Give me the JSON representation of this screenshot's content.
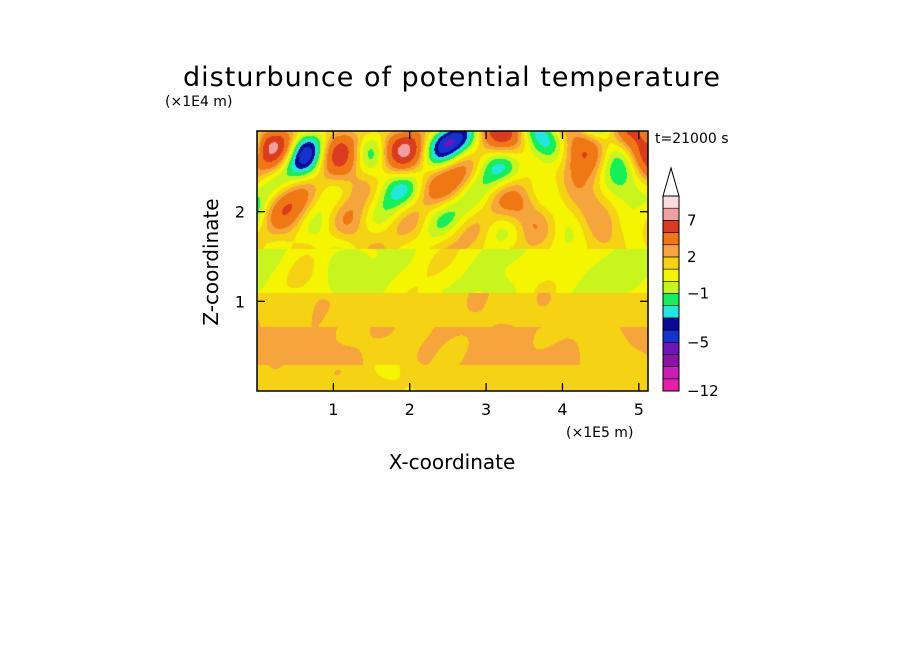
{
  "chart_data": {
    "type": "heatmap",
    "title": "disturbunce of potential temperature",
    "time_label": "t=21000 s",
    "xlabel": "X-coordinate",
    "ylabel": "Z-coordinate",
    "x_scale_label": "(×1E5 m)",
    "y_scale_label": "(×1E4 m)",
    "xlim": [
      0,
      5.12
    ],
    "ylim": [
      0,
      2.9
    ],
    "x_ticks": [
      1,
      2,
      3,
      4,
      5
    ],
    "x_tick_labels": [
      "1",
      "2",
      "3",
      "4",
      "5"
    ],
    "y_ticks": [
      1,
      2
    ],
    "y_tick_labels": [
      "1",
      "2"
    ],
    "colorbar": {
      "levels": [
        -12,
        -10,
        -8,
        -6,
        -5,
        -4,
        -3,
        -2,
        -1,
        0,
        1,
        2,
        3,
        5,
        7,
        8,
        9
      ],
      "colors": [
        "#e61eaa",
        "#c81eb4",
        "#8c14a5",
        "#6e14b9",
        "#1432cd",
        "#0a0a96",
        "#23e6e1",
        "#14f05a",
        "#c8f51e",
        "#f5f500",
        "#f5d214",
        "#f5a53c",
        "#f07814",
        "#dc3c1e",
        "#f0a0a0",
        "#fadcdc"
      ],
      "labeled_ticks": [
        {
          "value": -12,
          "label": "−12"
        },
        {
          "value": -5,
          "label": "−5"
        },
        {
          "value": -1,
          "label": "−1"
        },
        {
          "value": 2,
          "label": "2"
        },
        {
          "value": 7,
          "label": "7"
        }
      ]
    }
  }
}
